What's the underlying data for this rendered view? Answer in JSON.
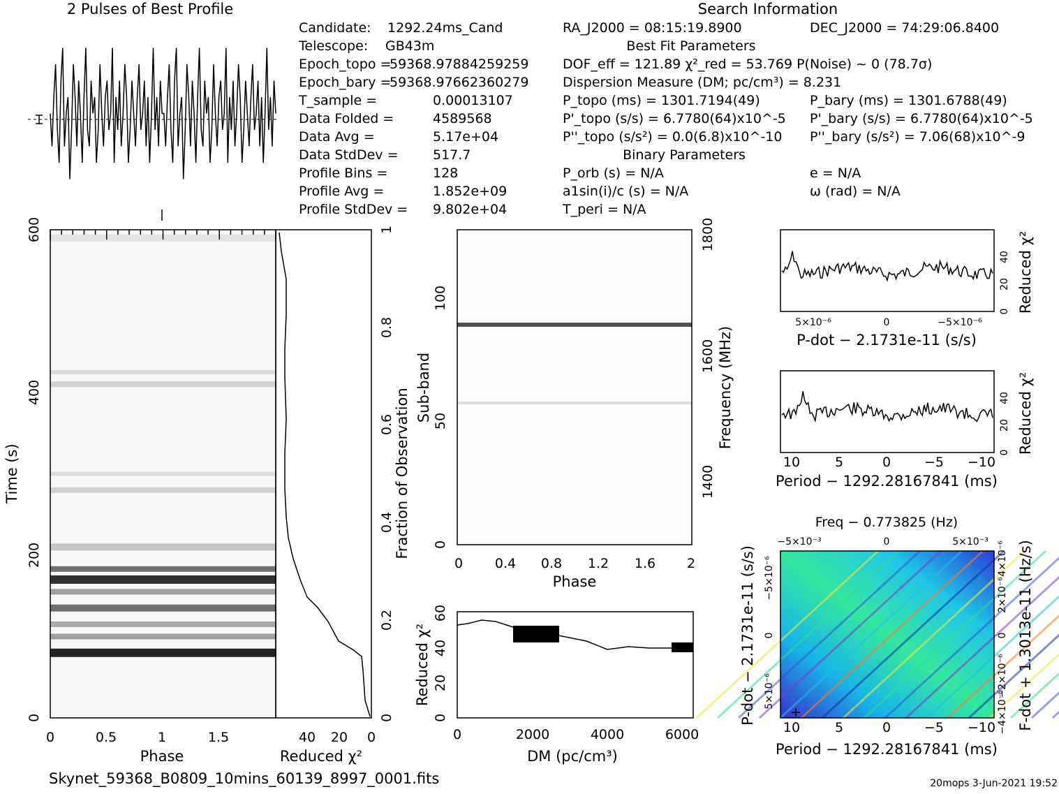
{
  "title_profile": "2 Pulses of Best Profile",
  "title_search": "Search Information",
  "left_block": [
    {
      "label": "Candidate:",
      "value": "1292.24ms_Cand"
    },
    {
      "label": "Telescope:",
      "value": "GB43m"
    },
    {
      "label": "Epoch_topo =",
      "value": "59368.97884259259"
    },
    {
      "label": "Epoch_bary =",
      "value": "59368.97662360279"
    },
    {
      "label": "T_sample =",
      "value": "0.00013107"
    },
    {
      "label": "Data Folded =",
      "value": "4589568"
    },
    {
      "label": "Data Avg =",
      "value": "5.17e+04"
    },
    {
      "label": "Data StdDev =",
      "value": "517.7"
    },
    {
      "label": "Profile Bins =",
      "value": "128"
    },
    {
      "label": "Profile Avg =",
      "value": "1.852e+09"
    },
    {
      "label": "Profile StdDev =",
      "value": "9.802e+04"
    }
  ],
  "search_info": {
    "ra": "RA_J2000 = 08:15:19.8900",
    "dec": "DEC_J2000 = 74:29:06.8400",
    "best_fit_header": "Best Fit Parameters",
    "dof": "DOF_eff = 121.89  χ²_red = 53.769  P(Noise) ~ 0  (78.7σ)",
    "dm": "Dispersion Measure (DM; pc/cm³) = 8.231",
    "p_topo": "P_topo (ms) = 1301.7194(49)",
    "p_bary": "P_bary (ms) = 1301.6788(49)",
    "pd_topo": "P'_topo (s/s) = 6.7780(64)x10^-5",
    "pd_bary": "P'_bary (s/s) = 6.7780(64)x10^-5",
    "pdd_topo": "P''_topo (s/s²) = 0.0(6.8)x10^-10",
    "pdd_bary": "P''_bary (s/s²) = 7.06(68)x10^-9",
    "binary_header": "Binary Parameters",
    "porb": "P_orb (s) = N/A",
    "e": "e = N/A",
    "a1": "a1sin(i)/c (s) = N/A",
    "omega": "ω (rad) = N/A",
    "tperi": "T_peri = N/A"
  },
  "footer": {
    "filename": "Skynet_59368_B0809_10mins_60139_8997_0001.fits",
    "stamp": "20mops  3-Jun-2021 19:52"
  },
  "chart_data": [
    {
      "type": "line",
      "id": "profile",
      "title": "2 Pulses of Best Profile",
      "x": "phase 0-2",
      "values": [
        0.5,
        0.3,
        0.6,
        0.8,
        0.4,
        0.2,
        0.7,
        0.9,
        0.3,
        0.5,
        0.6,
        0.1,
        0.4,
        0.8,
        0.6,
        0.3,
        0.7,
        0.5,
        0.2,
        0.6,
        0.9,
        0.4,
        0.3,
        0.7,
        0.5,
        0.6,
        0.2,
        0.4,
        0.8,
        0.5,
        0.3,
        0.6,
        0.7,
        0.4,
        0.5,
        0.9,
        0.2,
        0.6,
        0.4,
        0.7,
        0.3,
        0.5,
        0.8,
        0.6,
        0.2,
        0.4,
        0.7,
        0.5,
        0.3,
        0.6,
        0.8,
        0.4,
        0.5,
        0.7,
        0.3,
        0.6,
        0.2,
        0.5,
        0.9,
        0.4,
        0.6,
        0.3,
        0.7,
        0.5
      ]
    },
    {
      "type": "heatmap",
      "id": "time-phase",
      "xlabel": "Phase",
      "ylabel": "Time (s)",
      "xticks": [
        "0",
        "0.5",
        "1",
        "1.5"
      ],
      "yticks": [
        "0",
        "200",
        "400",
        "600"
      ],
      "dark_rows_s": [
        80,
        130,
        170,
        280,
        410
      ],
      "xlim": [
        0,
        2
      ],
      "ylim": [
        0,
        600
      ]
    },
    {
      "type": "line",
      "id": "time-chi",
      "xlabel": "Reduced χ²",
      "ylabel_right": "Fraction of Observation",
      "xticks": [
        "40",
        "20",
        "0"
      ],
      "yticks_right": [
        "0",
        "0.2",
        "0.4",
        "0.6",
        "0.8",
        "1"
      ]
    },
    {
      "type": "heatmap",
      "id": "subband-phase",
      "xlabel": "Phase",
      "ylabel": "Sub-band",
      "ylabel_right": "Frequency (MHz)",
      "xticks": [
        "0",
        "0.4",
        "0.8",
        "1.2",
        "1.6",
        "2"
      ],
      "yticks": [
        "0",
        "50",
        "100"
      ],
      "yticks_right": [
        "1400",
        "1600",
        "1800"
      ],
      "dark_rows": [
        90
      ],
      "faint_rows": [
        58
      ]
    },
    {
      "type": "line",
      "id": "dm-chi",
      "xlabel": "DM (pc/cm³)",
      "ylabel": "Reduced χ²",
      "xticks": [
        "0",
        "2000",
        "4000",
        "6000"
      ],
      "yticks": [
        "0",
        "20",
        "40",
        "60"
      ],
      "xlim": [
        0,
        6300
      ],
      "ylim": [
        0,
        60
      ]
    },
    {
      "type": "line",
      "id": "pdot-chi",
      "xlabel": "P-dot − 2.1731e-11 (s/s)",
      "ylabel": "Reduced χ²",
      "xticks": [
        "5×10⁻⁶",
        "0",
        "−5×10⁻⁶"
      ],
      "yticks": [
        "0",
        "20",
        "40"
      ]
    },
    {
      "type": "line",
      "id": "period-chi",
      "xlabel": "Period − 1292.28167841 (ms)",
      "ylabel": "Reduced χ²",
      "xticks": [
        "10",
        "5",
        "0",
        "−5",
        "−10"
      ],
      "yticks": [
        "0",
        "20",
        "40"
      ]
    },
    {
      "type": "heatmap",
      "id": "p-pdot",
      "title": "Freq − 0.773825 (Hz)",
      "xlabel": "Period − 1292.28167841 (ms)",
      "ylabel": "P-dot − 2.1731e-11 (s/s)",
      "ylabel_right": "F-dot + 1.3013e-11 (Hz/s)",
      "xticks": [
        "10",
        "5",
        "0",
        "−5",
        "−10"
      ],
      "xticks_top": [
        "−5×10⁻³",
        "0",
        "5×10⁻³"
      ],
      "yticks": [
        "5×10⁻⁶",
        "0",
        "−5×10⁻⁶"
      ],
      "yticks_right": [
        "−4×10⁻⁶",
        "−2×10⁻⁶",
        "0",
        "2×10⁻⁶",
        "4×10⁻⁶"
      ]
    }
  ]
}
